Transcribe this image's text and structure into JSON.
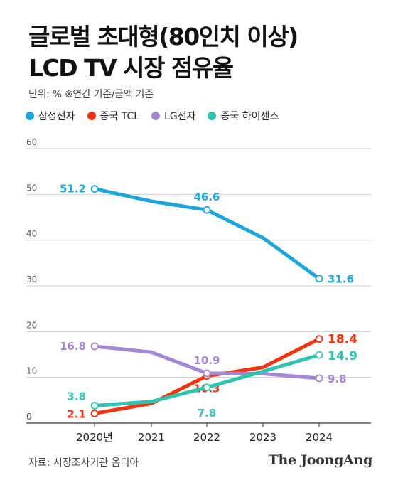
{
  "title_line1": "글로벌 초대형(80인치 이상)",
  "title_line2": "LCD TV 시장 점유율",
  "unit_note": "단위: %  ※연간 기준/금액 기준",
  "source": "자료: 시장조사기관 옴디아",
  "brand": "The JoongAng",
  "chart_data": {
    "type": "line",
    "x": [
      "2020년",
      "2021",
      "2022",
      "2023",
      "2024"
    ],
    "yticks": [
      0,
      10,
      20,
      30,
      40,
      50,
      60
    ],
    "ylim": [
      0,
      60
    ],
    "grid": true,
    "legend_position": "top",
    "series": [
      {
        "name": "삼성전자",
        "color": "#1ba6dd",
        "values": [
          51.2,
          48.5,
          46.6,
          40.5,
          31.6
        ],
        "labels": [
          "51.2",
          null,
          "46.6",
          null,
          "31.6"
        ]
      },
      {
        "name": "중국 TCL",
        "color": "#f2330f",
        "values": [
          2.1,
          4.3,
          10.3,
          12.2,
          18.4
        ],
        "labels": [
          "2.1",
          null,
          "10.3",
          null,
          "18.4"
        ]
      },
      {
        "name": "LG전자",
        "color": "#a487d6",
        "values": [
          16.8,
          15.5,
          10.9,
          10.8,
          9.8
        ],
        "labels": [
          "16.8",
          null,
          "10.9",
          null,
          "9.8"
        ]
      },
      {
        "name": "중국 하이센스",
        "color": "#2ec4b0",
        "values": [
          3.8,
          4.7,
          7.8,
          11.3,
          14.9
        ],
        "labels": [
          "3.8",
          null,
          "7.8",
          null,
          "14.9"
        ]
      }
    ]
  }
}
